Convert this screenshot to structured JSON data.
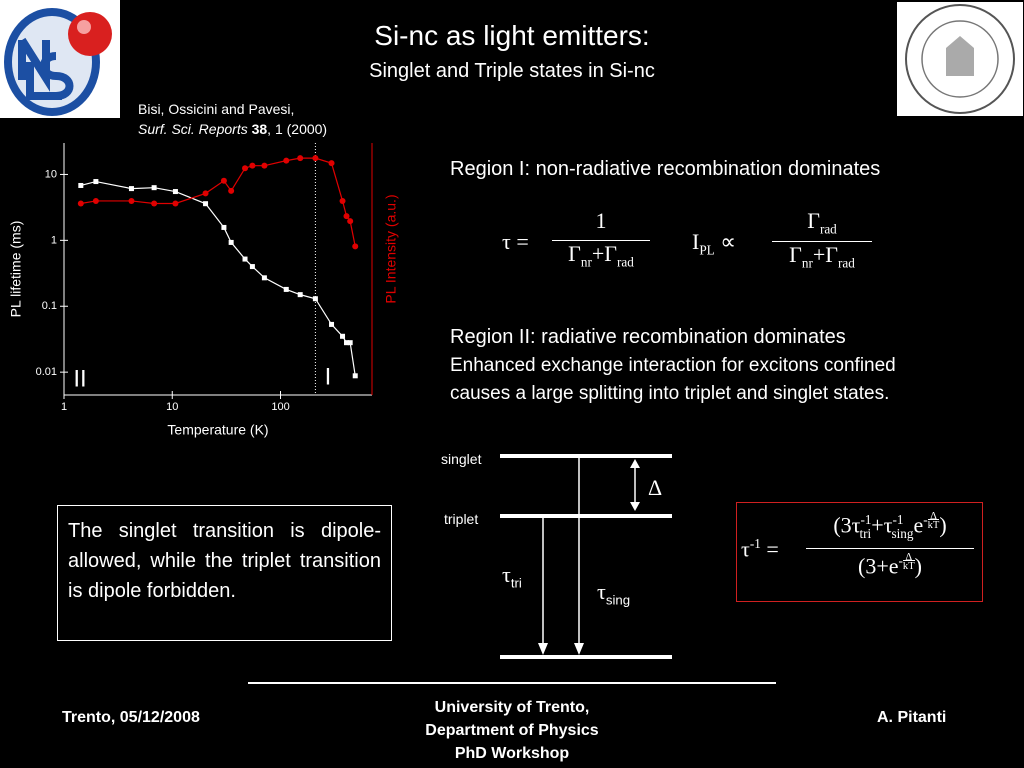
{
  "header": {
    "title": "Si-nc as light emitters:",
    "subtitle": "Singlet and Triple states in Si-nc",
    "citation": {
      "authors": "Bisi, Ossicini and Pavesi,",
      "journal": "Surf. Sci. Reports",
      "volume": "38",
      "rest": ", 1 (2000)"
    }
  },
  "chart_data": {
    "type": "line",
    "xscale": "log",
    "yscale": "log",
    "xlabel": "Temperature (K)",
    "ylabel": "PL lifetime (ms)",
    "y2label": "PL Intensity (a.u.)",
    "x": [
      1.43,
      1.97,
      4.2,
      6.8,
      10.7,
      20.3,
      30,
      35,
      47,
      55,
      71,
      113,
      152,
      210,
      296,
      374,
      407,
      440,
      490
    ],
    "series": [
      {
        "name": "PL lifetime",
        "color": "#ffffff",
        "marker": "square",
        "values": [
          6.8,
          7.8,
          6.1,
          6.3,
          5.5,
          3.6,
          1.57,
          0.93,
          0.52,
          0.4,
          0.27,
          0.18,
          0.15,
          0.13,
          0.053,
          0.035,
          0.028,
          0.028,
          0.0088
        ]
      },
      {
        "name": "PL Intensity",
        "color": "#e00000",
        "marker": "circle",
        "axis": "y2",
        "values": [
          0.76,
          0.77,
          0.77,
          0.76,
          0.76,
          0.8,
          0.85,
          0.81,
          0.9,
          0.91,
          0.91,
          0.93,
          0.94,
          0.94,
          0.92,
          0.77,
          0.71,
          0.69,
          0.59
        ]
      }
    ],
    "xlim": [
      1,
      700
    ],
    "xticks": [
      1,
      10,
      100
    ],
    "ylim": [
      0.0045,
      30
    ],
    "yticks": [
      10,
      1,
      0.1,
      0.01
    ],
    "y2lim": [
      0,
      1
    ],
    "y2color": "#e00000",
    "vline_x": 210,
    "annotations": [
      "II",
      "I"
    ]
  },
  "region1": "Region I: non-radiative recombination dominates",
  "region2": {
    "title": "Region II: radiative recombination dominates",
    "line1": "Enhanced exchange interaction for excitons confined",
    "line2": "causes a large splitting into triplet and singlet states."
  },
  "equations": {
    "lifetime": {
      "lhs": "τ =",
      "numerator": "1",
      "denominator": [
        "Γ",
        "nr",
        "+Γ",
        "rad"
      ]
    },
    "intensity": {
      "lhs": "I",
      "lhs_sub": "PL",
      "relation": "∝",
      "numerator": [
        "Γ",
        "rad"
      ],
      "denominator": [
        "Γ",
        "nr",
        "+Γ",
        "rad"
      ]
    },
    "rate": {
      "lhs": "τ",
      "lhs_sup": "-1",
      "equals": "=",
      "numerator": [
        "(3τ",
        "-1",
        "tri",
        "+τ",
        "-1",
        "sing",
        "e",
        "-",
        "Δ",
        "kT",
        ")"
      ],
      "denominator": [
        "(3+e",
        "-",
        "Δ",
        "kT",
        ")"
      ]
    }
  },
  "diagram": {
    "singlet": "singlet",
    "triplet": "triplet",
    "delta": "Δ",
    "tau_tri": [
      "τ",
      "tri"
    ],
    "tau_sing": [
      "τ",
      "sing"
    ]
  },
  "note": "The singlet transition is dipole-allowed, while the triplet transition is dipole forbidden.",
  "footer": {
    "left": "Trento, 05/12/2008",
    "center": [
      "University of Trento,",
      "Department of Physics",
      "PhD Workshop"
    ],
    "right": "A. Pitanti"
  }
}
